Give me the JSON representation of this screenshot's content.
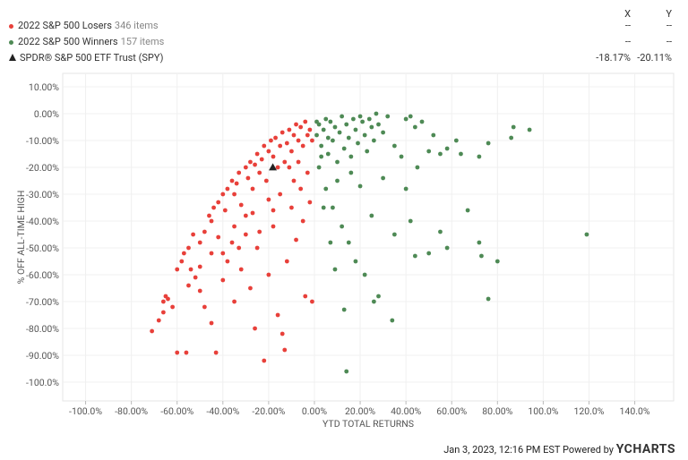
{
  "chart_data": {
    "type": "scatter",
    "y_label": "% OFF ALL-TIME HIGH",
    "x_label": "YTD TOTAL RETURNS",
    "xlim": [
      -110,
      157
    ],
    "ylim": [
      -107,
      15
    ],
    "grid": true,
    "xticks": [
      {
        "value": -100,
        "label": "-100.0%"
      },
      {
        "value": -80,
        "label": "-80.00%"
      },
      {
        "value": -60,
        "label": "-60.00%"
      },
      {
        "value": -40,
        "label": "-40.00%"
      },
      {
        "value": -20,
        "label": "-20.00%"
      },
      {
        "value": 0,
        "label": "0.00%"
      },
      {
        "value": 20,
        "label": "20.00%"
      },
      {
        "value": 40,
        "label": "40.00%"
      },
      {
        "value": 60,
        "label": "60.00%"
      },
      {
        "value": 80,
        "label": "80.00%"
      },
      {
        "value": 100,
        "label": "100.0%"
      },
      {
        "value": 120,
        "label": "120.0%"
      },
      {
        "value": 140,
        "label": "140.0%"
      }
    ],
    "yticks": [
      {
        "value": 10,
        "label": "10.00%"
      },
      {
        "value": 0,
        "label": "0.00%"
      },
      {
        "value": -10,
        "label": "-10.00%"
      },
      {
        "value": -20,
        "label": "-20.00%"
      },
      {
        "value": -30,
        "label": "-30.00%"
      },
      {
        "value": -40,
        "label": "-40.00%"
      },
      {
        "value": -50,
        "label": "-50.00%"
      },
      {
        "value": -60,
        "label": "-60.00%"
      },
      {
        "value": -70,
        "label": "-70.00%"
      },
      {
        "value": -80,
        "label": "-80.00%"
      },
      {
        "value": -90,
        "label": "-90.00%"
      },
      {
        "value": -100,
        "label": "-100.0%"
      }
    ],
    "x_header": "X",
    "y_header": "Y",
    "series": [
      {
        "name": "2022 S&P 500 Losers",
        "items_label": "346 items",
        "color": "#e8403a",
        "marker": "circle",
        "x_label": "--",
        "y_label": "--",
        "x": [
          -71,
          -68,
          -66,
          -65,
          -64,
          -60,
          -58,
          -57,
          -55,
          -54,
          -53,
          -50,
          -48,
          -46,
          -45,
          -44,
          -42,
          -40,
          -39,
          -38,
          -36,
          -35,
          -34,
          -33,
          -32,
          -30,
          -29,
          -28,
          -27,
          -26,
          -25,
          -24,
          -23,
          -22,
          -21,
          -20,
          -19,
          -18,
          -17,
          -16,
          -15,
          -14,
          -13,
          -12,
          -11,
          -10,
          -9,
          -8,
          -7,
          -6,
          -5,
          -4,
          -3,
          -2,
          -1,
          -60,
          -56,
          -50,
          -48,
          -45,
          -43,
          -40,
          -38,
          -36,
          -35,
          -32,
          -30,
          -28,
          -26,
          -25,
          -22,
          -20,
          -18,
          -16,
          -14,
          -13,
          -12,
          -10,
          -8,
          -6,
          -5,
          -3,
          -2,
          -1,
          -4,
          -20,
          -30,
          -40,
          -50,
          -55,
          -62,
          -66,
          -24,
          -15,
          -9,
          -35,
          -45,
          -42,
          -18,
          -11,
          -7,
          -27,
          -33,
          -52
        ],
        "y": [
          -81,
          -77,
          -70,
          -68,
          -69,
          -58,
          -55,
          -52,
          -50,
          -58,
          -45,
          -48,
          -44,
          -38,
          -40,
          -35,
          -33,
          -30,
          -36,
          -28,
          -25,
          -30,
          -26,
          -22,
          -34,
          -20,
          -24,
          -18,
          -28,
          -19,
          -15,
          -22,
          -17,
          -12,
          -25,
          -14,
          -10,
          -16,
          -9,
          -20,
          -12,
          -7,
          -18,
          -11,
          -6,
          -14,
          -8,
          -4,
          -10,
          -5,
          -12,
          -3,
          -8,
          -6,
          -10,
          -89,
          -89,
          -66,
          -72,
          -78,
          -89,
          -62,
          -55,
          -48,
          -70,
          -58,
          -45,
          -65,
          -80,
          -50,
          -92,
          -60,
          -42,
          -75,
          -82,
          -88,
          -55,
          -35,
          -47,
          -28,
          -40,
          -22,
          -33,
          -70,
          -68,
          -32,
          -38,
          -52,
          -57,
          -64,
          -72,
          -74,
          -44,
          -30,
          -25,
          -42,
          -52,
          -46,
          -36,
          -20,
          -18,
          -37,
          -50,
          -61
        ]
      },
      {
        "name": "2022 S&P 500 Winners",
        "items_label": "157 items",
        "color": "#4e8a55",
        "marker": "circle",
        "x_label": "--",
        "y_label": "--",
        "x": [
          1,
          2,
          3,
          4,
          5,
          6,
          7,
          8,
          9,
          10,
          11,
          12,
          13,
          14,
          15,
          16,
          17,
          18,
          19,
          20,
          21,
          22,
          23,
          24,
          25,
          26,
          27,
          28,
          30,
          32,
          35,
          38,
          40,
          42,
          44,
          45,
          47,
          50,
          52,
          55,
          58,
          62,
          64,
          72,
          76,
          86,
          87,
          94,
          2,
          5,
          8,
          10,
          12,
          15,
          18,
          20,
          22,
          25,
          28,
          30,
          35,
          40,
          42,
          44,
          50,
          55,
          58,
          67,
          72,
          73,
          76,
          80,
          119,
          13,
          14,
          26,
          34,
          4,
          7,
          9,
          16,
          3,
          6,
          1
        ],
        "y": [
          -8,
          -4,
          -12,
          -6,
          -2,
          -15,
          -3,
          -10,
          -5,
          -18,
          -7,
          -1,
          -13,
          -4,
          -9,
          -16,
          -2,
          -6,
          -11,
          -1,
          -3,
          -8,
          -14,
          -2,
          -5,
          -10,
          0,
          -4,
          -7,
          -1,
          -12,
          -16,
          -2,
          -1,
          -5,
          -20,
          -3,
          -14,
          -8,
          -15,
          -13,
          -10,
          -15,
          -16,
          -11,
          -9,
          -5,
          -6,
          -20,
          -28,
          -35,
          -25,
          -42,
          -48,
          -55,
          -27,
          -60,
          -38,
          -68,
          -24,
          -45,
          -28,
          -40,
          -53,
          -52,
          -44,
          -50,
          -36,
          -48,
          -53,
          -69,
          -55,
          -45,
          -73,
          -96,
          -70,
          -77,
          -35,
          -48,
          -58,
          -22,
          -16,
          -9,
          -3
        ]
      },
      {
        "name": "SPDR® S&P 500 ETF Trust (SPY)",
        "color": "#222222",
        "marker": "triangle",
        "x_label": "-18.17%",
        "y_label": "-20.11%",
        "x": [
          -18.17
        ],
        "y": [
          -20.11
        ]
      }
    ]
  },
  "footer": {
    "timestamp": "Jan 3, 2023, 12:16 PM EST",
    "powered": "Powered by",
    "brand": "YCHARTS"
  }
}
